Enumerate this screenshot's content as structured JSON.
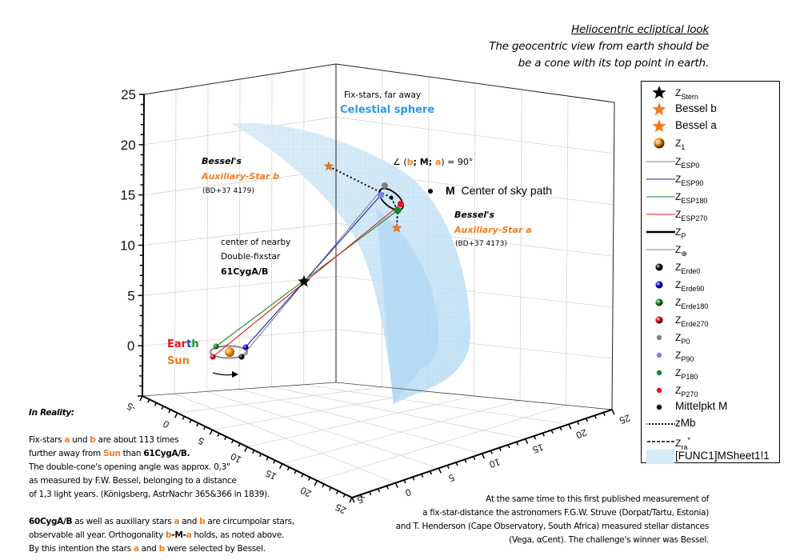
{
  "header": {
    "title": "Heliocentric ecliptical look",
    "subtitle_line1": "The geocentric view from earth should be",
    "subtitle_line2": "be a cone with its top point in earth."
  },
  "annotations": {
    "fixstars": "Fix-stars, far away",
    "celestial": "Celestial sphere",
    "besselb_1": "Bessel's",
    "besselb_2": "Auxiliary-Star b",
    "besselb_3": "(BD+37 4179)",
    "angle_prefix": "∠ (",
    "angle_b": "b",
    "angle_mid": "; M; ",
    "angle_a": "a",
    "angle_suffix": ") = 90°",
    "m_label": "M",
    "m_text": "Center of sky path",
    "bessela_1": "Bessel's",
    "bessela_2": "Auxiliary-Star a",
    "bessela_3": "(BD+37 4173)",
    "center_1": "center of nearby",
    "center_2": "Double-fixstar",
    "center_3": "61CygA/B",
    "earth_E": "E",
    "earth_a": "a",
    "earth_r": "r",
    "earth_t": "t",
    "earth_h": "h",
    "sun": "Sun"
  },
  "reality": {
    "heading": "In Reality:",
    "p1_l1_a": "Fix-stars ",
    "p1_l1_b": "a",
    "p1_l1_c": " und ",
    "p1_l1_d": "b",
    "p1_l1_e": " are about 113 times",
    "p1_l2_a": "further away from ",
    "p1_l2_b": "Sun",
    "p1_l2_c": " than ",
    "p1_l2_d": "61CygA/B.",
    "p1_l3": "The double-cone's opening angle was approx. 0,3\"",
    "p1_l4": "as measured by F.W. Bessel, belonging to a distance",
    "p1_l5": "of 1,3 light years. (Königsberg, AstrNachr 365&366 in 1839).",
    "p2_l1_a": "60CygA/B",
    "p2_l1_b": " as well as auxiliary stars ",
    "p2_l1_c": "a",
    "p2_l1_d": " and ",
    "p2_l1_e": "b",
    "p2_l1_f": " are circumpolar stars,",
    "p2_l2_a": "observable all year. Orthogonality ",
    "p2_l2_b": "b",
    "p2_l2_c": "-M-",
    "p2_l2_d": "a",
    "p2_l2_e": " holds, as noted above.",
    "p2_l3_a": "By this intention the stars ",
    "p2_l3_b": "a",
    "p2_l3_c": " and ",
    "p2_l3_d": "b",
    "p2_l3_e": " were selected by Bessel."
  },
  "bottom_note": {
    "l1": "At the same time to this first published measurement of",
    "l2": "a fix-star-distance the astronomers F.G.W. Struve (Dorpat/Tartu, Estonia)",
    "l3": "and T. Henderson (Cape Observatory, South Africa) measured stellar distances",
    "l4": "(Vega, αCent). The challenge's winner was Bessel."
  },
  "legend": [
    {
      "label": "Z",
      "sub": "Stern",
      "symbol": "star",
      "color": "#000000"
    },
    {
      "label": "Bessel b",
      "sub": "",
      "symbol": "star",
      "color": "#f47b20"
    },
    {
      "label": "Bessel a",
      "sub": "",
      "symbol": "star",
      "color": "#f47b20"
    },
    {
      "label": "Z",
      "sub": "1",
      "symbol": "ball",
      "color": "#f0901c"
    },
    {
      "label": "Z",
      "sub": "ESP0",
      "symbol": "line",
      "color": "#808080"
    },
    {
      "label": "Z",
      "sub": "ESP90",
      "symbol": "line",
      "color": "#1c1cb0"
    },
    {
      "label": "Z",
      "sub": "ESP180",
      "symbol": "line",
      "color": "#1a8a2a"
    },
    {
      "label": "Z",
      "sub": "ESP270",
      "symbol": "line",
      "color": "#e8101c"
    },
    {
      "label": "Z",
      "sub": "P",
      "symbol": "thickline",
      "color": "#000000"
    },
    {
      "label": "Z",
      "sub": "⊕",
      "symbol": "line",
      "color": "#808080"
    },
    {
      "label": "Z",
      "sub": "Erde0",
      "symbol": "ball",
      "color": "#111111"
    },
    {
      "label": "Z",
      "sub": "Erde90",
      "symbol": "ball",
      "color": "#1010e0"
    },
    {
      "label": "Z",
      "sub": "Erde180",
      "symbol": "ball",
      "color": "#1a8a2a"
    },
    {
      "label": "Z",
      "sub": "Erde270",
      "symbol": "ball",
      "color": "#e8101c"
    },
    {
      "label": "Z",
      "sub": "P0",
      "symbol": "dot",
      "color": "#808080"
    },
    {
      "label": "Z",
      "sub": "P90",
      "symbol": "dot",
      "color": "#8080f0"
    },
    {
      "label": "Z",
      "sub": "P180",
      "symbol": "dot",
      "color": "#1a8a2a"
    },
    {
      "label": "Z",
      "sub": "P270",
      "symbol": "dot",
      "color": "#e8101c"
    },
    {
      "label": "Mittelpkt M",
      "sub": "",
      "symbol": "dot",
      "color": "#000000"
    },
    {
      "label": "zMb",
      "sub": "",
      "symbol": "dotted",
      "color": "#000000"
    },
    {
      "label": "Z",
      "sub": "ra",
      "sup": "*",
      "symbol": "dashed",
      "color": "#000000"
    },
    {
      "label": "[FUNC1]MSheet1!1",
      "sub": "",
      "symbol": "fill",
      "color": "#d6eaf8"
    }
  ],
  "chart_data": {
    "type": "scatter3d",
    "title": "Heliocentric ecliptical look",
    "axes": {
      "x": {
        "range": [
          -5,
          25
        ],
        "ticks": [
          -5,
          0,
          5,
          10,
          15,
          20,
          25
        ]
      },
      "y": {
        "range": [
          -5,
          25
        ],
        "ticks": [
          -5,
          0,
          5,
          10,
          15,
          20,
          25
        ]
      },
      "z": {
        "range": [
          -5,
          25
        ],
        "ticks": [
          0,
          5,
          10,
          15,
          20,
          25
        ]
      }
    },
    "grid": true,
    "legend_position": "right",
    "points": {
      "Z_Stern": [
        6.5,
        6.5,
        6.5
      ],
      "Z1_Sun": [
        0,
        0,
        0
      ],
      "Erde0": [
        1,
        0,
        0
      ],
      "Erde90": [
        0,
        1,
        0
      ],
      "Erde180": [
        -1,
        0,
        0
      ],
      "Erde270": [
        0,
        -1,
        0
      ],
      "P0": [
        13,
        13,
        15.5
      ],
      "P90": [
        13,
        12.5,
        15.3
      ],
      "P180": [
        12,
        14,
        13.8
      ],
      "P270": [
        11.5,
        14,
        14.5
      ],
      "Mittelpkt_M": [
        12.5,
        13.5,
        14.9
      ],
      "Bessel_b": [
        6,
        18,
        17.5
      ],
      "Bessel_a": [
        13,
        14,
        12
      ]
    },
    "surface": "Celestial sphere (FUNC1 MSheet1!1)",
    "tick_labels_vertical": [
      "25",
      "20",
      "15",
      "10",
      "5",
      "0"
    ],
    "tick_labels_left_floor": [
      "-5",
      "0",
      "5",
      "10",
      "15",
      "20",
      "25"
    ],
    "tick_labels_right_floor": [
      "-5",
      "0",
      "5",
      "10",
      "15",
      "20",
      "25"
    ]
  }
}
